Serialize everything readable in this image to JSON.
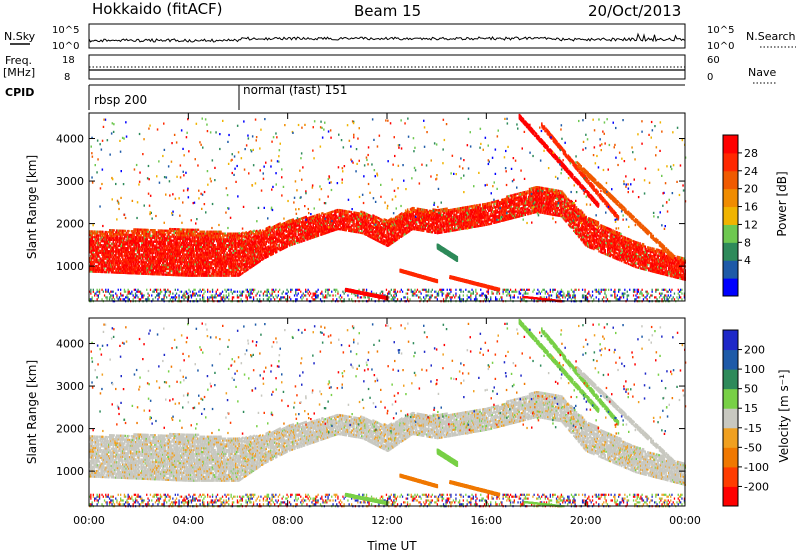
{
  "header": {
    "station": "Hokkaido (fitACF)",
    "beam": "Beam 15",
    "date": "20/Oct/2013"
  },
  "summary_panels": {
    "nsky_label": "N.Sky",
    "nsky_ticks": [
      "10^5",
      "10^0"
    ],
    "nsearch_label": "N.Search",
    "nsearch_ticks": [
      "10^5",
      "10^0"
    ],
    "freq_label": "Freq.",
    "freq_unit": "[MHz]",
    "freq_ticks": [
      "18",
      "8"
    ],
    "nave_label": "Nave",
    "nave_ticks": [
      "60",
      "0"
    ],
    "cpid_label": "CPID",
    "cpid_segments": [
      {
        "name": "rbsp 200",
        "start_hour": 0,
        "end_hour": 6
      },
      {
        "name": "normal (fast) 151",
        "start_hour": 6,
        "end_hour": 24
      }
    ]
  },
  "power_panel": {
    "ylabel": "Slant Range [km]",
    "yticks": [
      "4000",
      "3000",
      "2000",
      "1000"
    ],
    "colorbar_label": "Power [dB]",
    "colorbar_ticks": [
      "28",
      "24",
      "20",
      "16",
      "12",
      "8",
      "4"
    ],
    "colors": [
      "#0000ff",
      "#1e5aa8",
      "#2e8a5a",
      "#6ec850",
      "#f0b400",
      "#f08c00",
      "#f05a00",
      "#ff2800",
      "#ff0000"
    ]
  },
  "velocity_panel": {
    "ylabel": "Slant Range [km]",
    "yticks": [
      "4000",
      "3000",
      "2000",
      "1000"
    ],
    "colorbar_label": "Velocity [m s⁻¹]",
    "colorbar_ticks": [
      "200",
      "100",
      "50",
      "15",
      "-15",
      "-50",
      "-100",
      "-200"
    ],
    "colors": [
      "#1e28c8",
      "#1e5aa8",
      "#2e8a5a",
      "#78d046",
      "#c8c8c0",
      "#f0a020",
      "#f07800",
      "#ff3c00",
      "#ff0000"
    ]
  },
  "xaxis": {
    "label": "Time UT",
    "ticks": [
      "00:00",
      "04:00",
      "08:00",
      "12:00",
      "16:00",
      "20:00",
      "00:00"
    ]
  },
  "chart_data": {
    "type": "heatmap",
    "title": "Hokkaido (fitACF)  Beam 15  20/Oct/2013",
    "xlabel": "Time UT",
    "ylabel": "Slant Range [km]",
    "xlim_hours": [
      0,
      24
    ],
    "ylim_km": [
      180,
      4600
    ],
    "power_colorbar": {
      "label": "Power [dB]",
      "ticks": [
        4,
        8,
        12,
        16,
        20,
        24,
        28
      ],
      "range": [
        0,
        30
      ]
    },
    "velocity_colorbar": {
      "label": "Velocity [m s-1]",
      "ticks": [
        -200,
        -100,
        -50,
        -15,
        15,
        50,
        100,
        200
      ]
    },
    "main_echo_band": [
      {
        "hour": 0,
        "low_km": 900,
        "high_km": 1850
      },
      {
        "hour": 2,
        "low_km": 850,
        "high_km": 1900
      },
      {
        "hour": 4,
        "low_km": 800,
        "high_km": 1900
      },
      {
        "hour": 6,
        "low_km": 800,
        "high_km": 1800
      },
      {
        "hour": 7,
        "low_km": 1200,
        "high_km": 1900
      },
      {
        "hour": 8,
        "low_km": 1500,
        "high_km": 2100
      },
      {
        "hour": 10,
        "low_km": 1900,
        "high_km": 2350
      },
      {
        "hour": 11,
        "low_km": 1800,
        "high_km": 2300
      },
      {
        "hour": 12,
        "low_km": 1500,
        "high_km": 2100
      },
      {
        "hour": 13,
        "low_km": 1900,
        "high_km": 2400
      },
      {
        "hour": 14,
        "low_km": 1800,
        "high_km": 2350
      },
      {
        "hour": 16,
        "low_km": 2000,
        "high_km": 2500
      },
      {
        "hour": 18,
        "low_km": 2300,
        "high_km": 2900
      },
      {
        "hour": 19,
        "low_km": 2200,
        "high_km": 2800
      },
      {
        "hour": 20,
        "low_km": 1500,
        "high_km": 2200
      },
      {
        "hour": 22,
        "low_km": 1000,
        "high_km": 1600
      },
      {
        "hour": 24,
        "low_km": 700,
        "high_km": 1200
      }
    ]
  }
}
